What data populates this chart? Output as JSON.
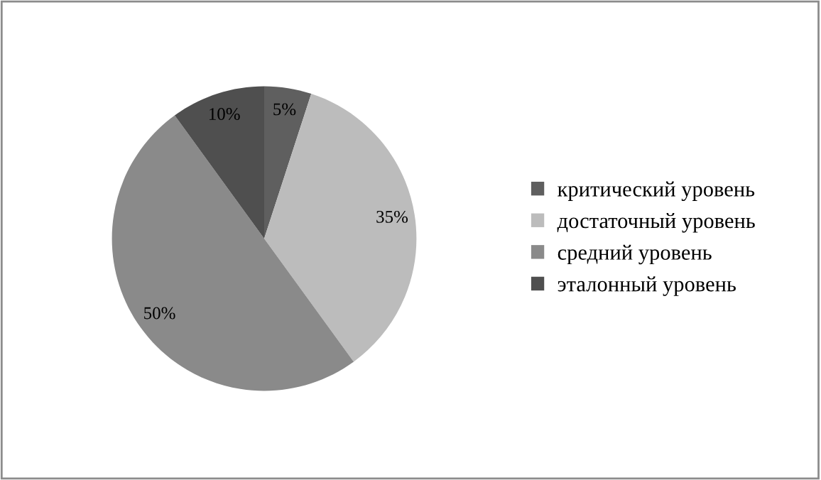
{
  "chart_data": {
    "type": "pie",
    "categories": [
      "критический уровень",
      "достаточный уровень",
      "средний уровень",
      "эталонный уровень"
    ],
    "values": [
      5,
      35,
      50,
      10
    ],
    "value_labels": [
      "5%",
      "35%",
      "50%",
      "10%"
    ],
    "colors": [
      "#5f5f5f",
      "#bcbcbc",
      "#8a8a8a",
      "#4f4f4f"
    ],
    "legend": "right"
  }
}
